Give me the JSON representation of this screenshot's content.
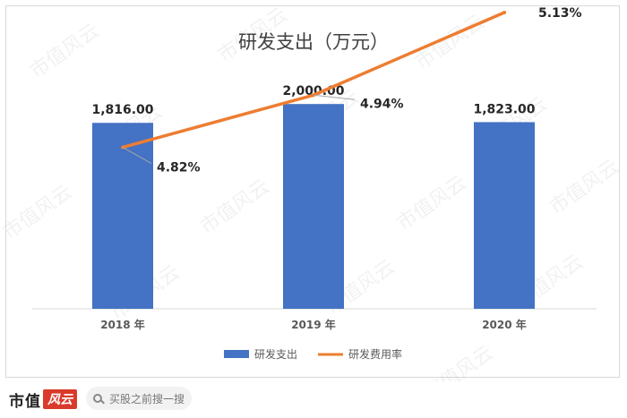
{
  "chart_data": {
    "type": "bar+line",
    "title": "研发支出（万元）",
    "categories": [
      "2018 年",
      "2019 年",
      "2020 年"
    ],
    "series": [
      {
        "name": "研发支出",
        "type": "bar",
        "values": [
          1816.0,
          2000.0,
          1823.0
        ],
        "labels": [
          "1,816.00",
          "2,000.00",
          "1,823.00"
        ],
        "color": "#4472c4"
      },
      {
        "name": "研发费用率",
        "type": "line",
        "values": [
          4.82,
          4.94,
          5.13
        ],
        "labels": [
          "4.82%",
          "4.94%",
          "5.13%"
        ],
        "color": "#ed7d31"
      }
    ],
    "bar_axis_range": [
      0,
      2500
    ],
    "line_axis_range": [
      4.5,
      5.2
    ],
    "legend_position": "bottom",
    "grid": false
  },
  "watermark": "市值风云",
  "footer": {
    "brand": "市值",
    "brand_seal": "风云",
    "search_placeholder": "买股之前搜一搜",
    "search_icon": "search-icon"
  }
}
